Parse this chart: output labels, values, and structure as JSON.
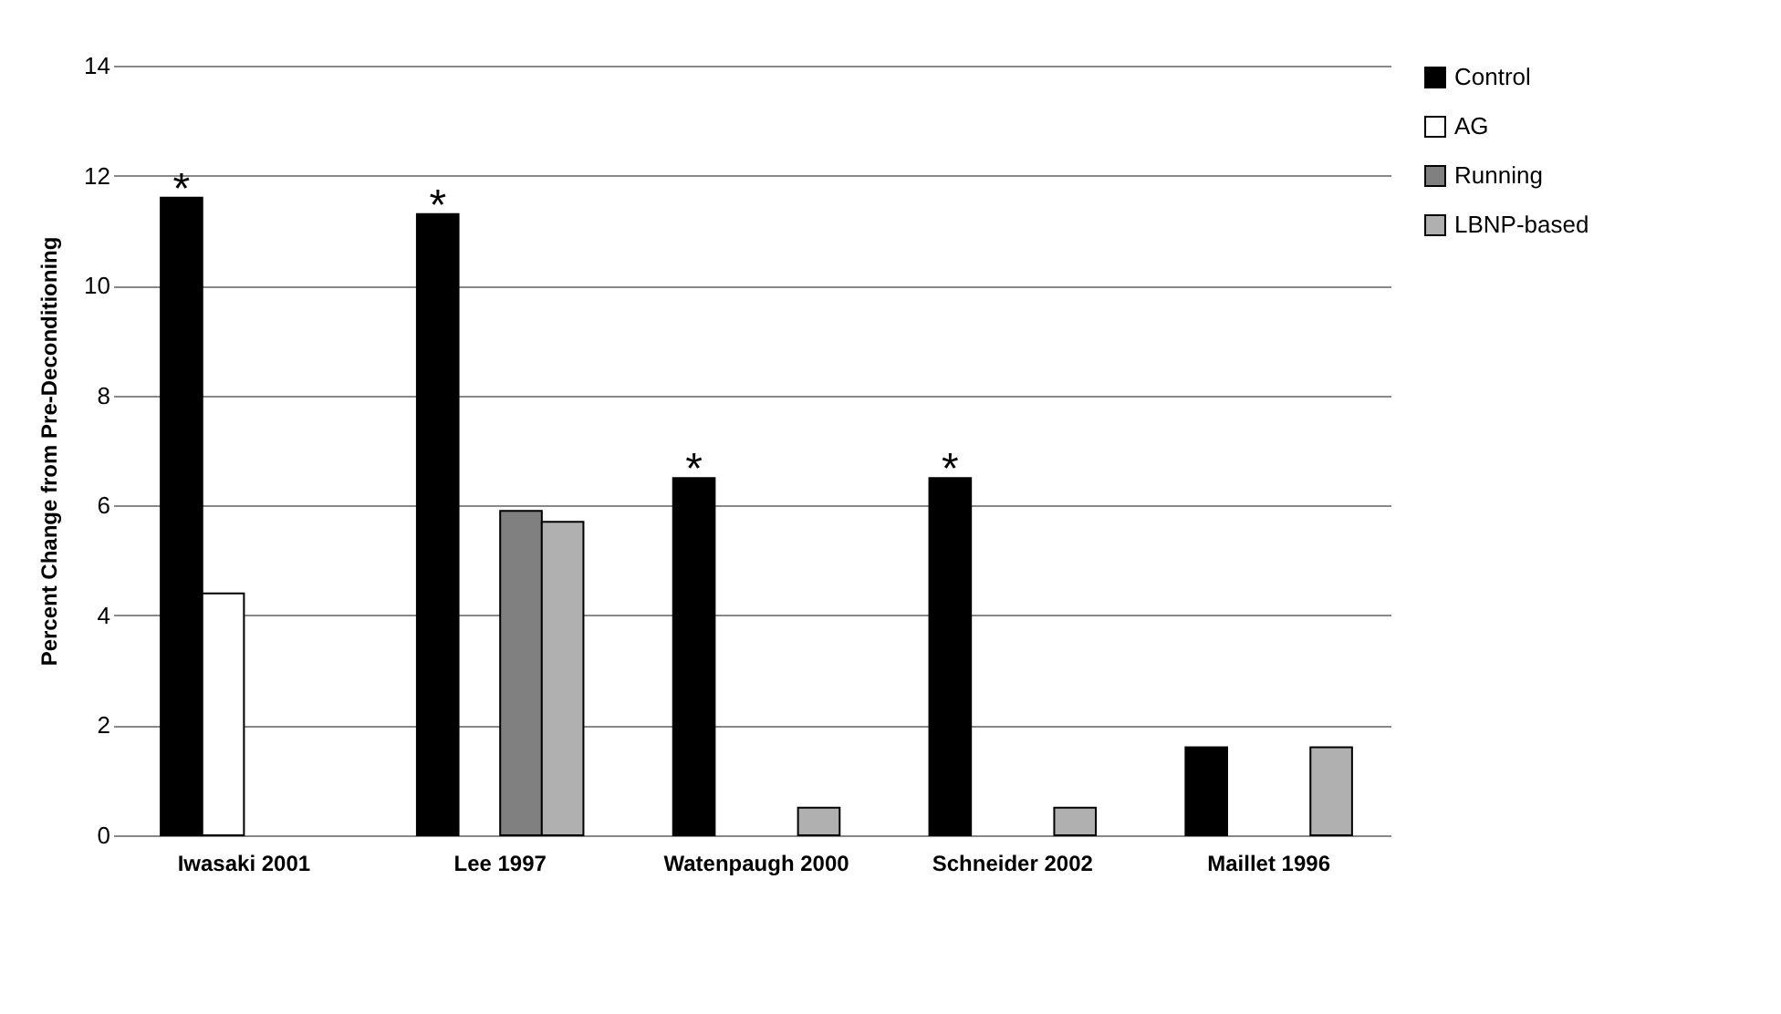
{
  "chart_data": {
    "type": "bar",
    "ylabel": "Percent Change from Pre-Deconditioning",
    "categories": [
      "Iwasaki 2001",
      "Lee 1997",
      "Watenpaugh 2000",
      "Schneider 2002",
      "Maillet 1996"
    ],
    "series": [
      {
        "name": "Control",
        "color": "#000000",
        "values": [
          11.6,
          11.3,
          6.5,
          6.5,
          1.6
        ],
        "value_labels": [
          "*",
          "*",
          "*",
          "*",
          null
        ]
      },
      {
        "name": "AG",
        "color": "#ffffff",
        "values": [
          4.4,
          null,
          null,
          null,
          null
        ]
      },
      {
        "name": "Running",
        "color": "#808080",
        "values": [
          null,
          5.9,
          null,
          null,
          null
        ]
      },
      {
        "name": "LBNP-based",
        "color": "#b0b0b0",
        "values": [
          null,
          5.7,
          0.5,
          0.5,
          1.6
        ]
      }
    ],
    "ylim": [
      0,
      14
    ],
    "yticks": [
      0,
      2,
      4,
      6,
      8,
      10,
      12,
      14
    ],
    "grid": "y",
    "legend": "right"
  }
}
